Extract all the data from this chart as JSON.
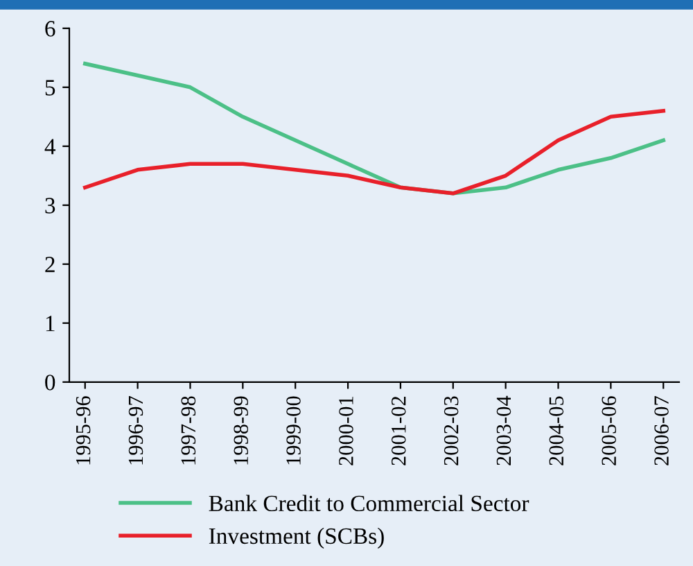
{
  "chart_data": {
    "type": "line",
    "categories": [
      "1995-96",
      "1996-97",
      "1997-98",
      "1998-99",
      "1999-00",
      "2000-01",
      "2001-02",
      "2002-03",
      "2003-04",
      "2004-05",
      "2005-06",
      "2006-07"
    ],
    "series": [
      {
        "name": "Bank Credit to Commercial Sector",
        "color": "#4cc087",
        "values": [
          5.4,
          5.2,
          5.0,
          4.5,
          4.1,
          3.7,
          3.3,
          3.2,
          3.3,
          3.6,
          3.8,
          4.1
        ]
      },
      {
        "name": "Investment (SCBs)",
        "color": "#e8202a",
        "values": [
          3.3,
          3.6,
          3.7,
          3.7,
          3.6,
          3.5,
          3.3,
          3.2,
          3.5,
          4.1,
          4.5,
          4.6
        ]
      }
    ],
    "ylim": [
      0,
      6
    ],
    "yticks": [
      0,
      1,
      2,
      3,
      4,
      5,
      6
    ],
    "grid": false,
    "legend": "bottom",
    "marker": "none",
    "line_style": "solid"
  }
}
